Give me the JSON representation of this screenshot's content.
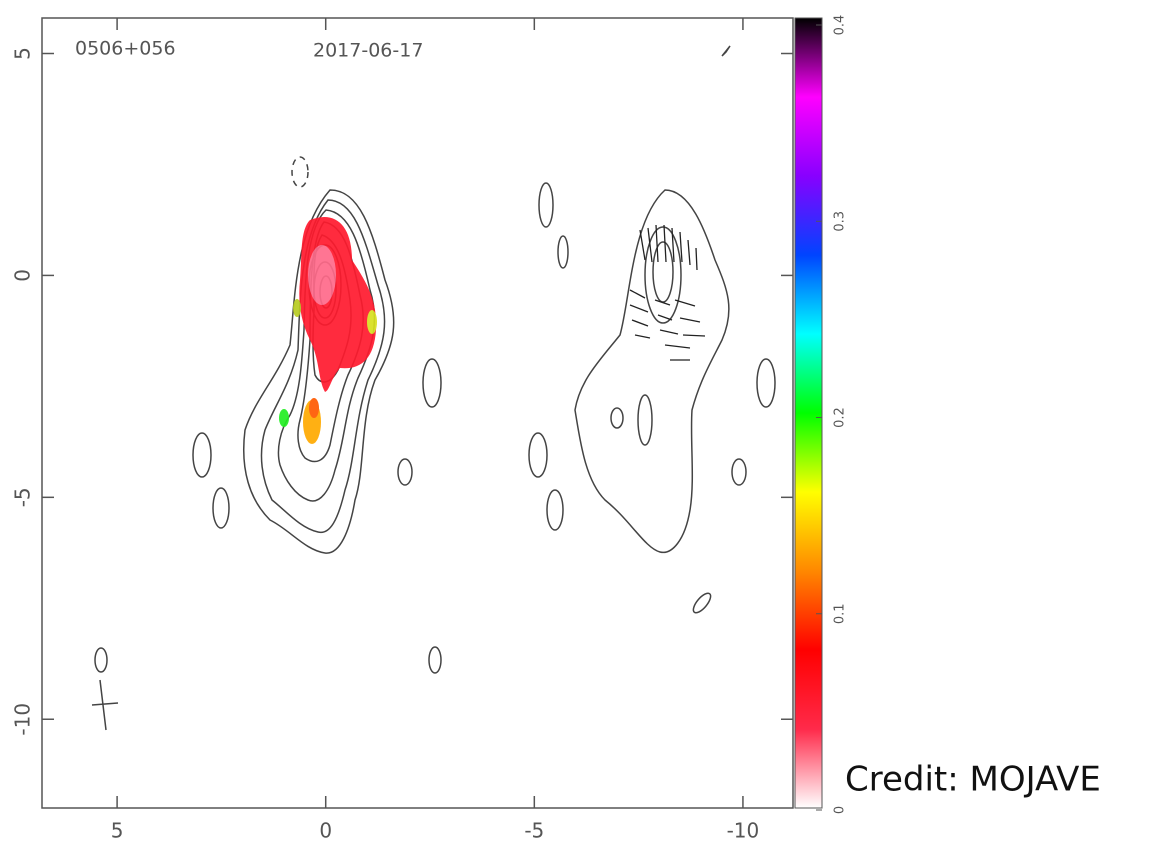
{
  "chart_data": {
    "type": "contour",
    "source": "0506+056",
    "date": "2017-06-17",
    "xlim": [
      6.8,
      -11.2
    ],
    "xticks": [
      5,
      0,
      -5,
      -10
    ],
    "ylim": [
      -12,
      5.8
    ],
    "yticks": [
      5,
      0,
      -5,
      -10
    ],
    "colorbar": {
      "lim": [
        0,
        0.4
      ],
      "ticks": [
        0,
        0.1,
        0.2,
        0.3,
        0.4
      ],
      "colors": [
        "#ffffff",
        "#ff2a4a",
        "#ff0000",
        "#ff8800",
        "#ffff00",
        "#00ff00",
        "#00ffff",
        "#0044ff",
        "#8800ff",
        "#ff00ff",
        "#000000"
      ]
    },
    "credit": "Credit: MOJAVE"
  }
}
